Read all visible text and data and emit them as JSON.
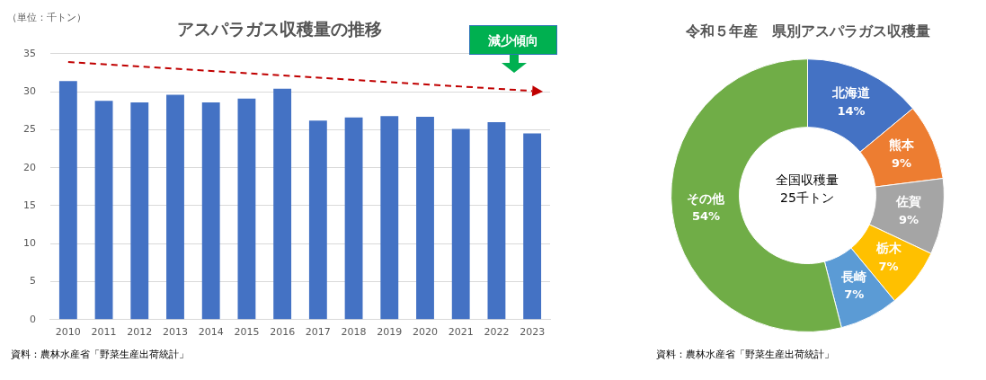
{
  "chart_data": [
    {
      "type": "bar",
      "title": "アスパラガス収穫量の推移",
      "ylabel": "（単位：千トン）",
      "categories": [
        "2010",
        "2011",
        "2012",
        "2013",
        "2014",
        "2015",
        "2016",
        "2017",
        "2018",
        "2019",
        "2020",
        "2021",
        "2022",
        "2023"
      ],
      "series": [
        {
          "color": "#4472c4",
          "values": [
            31.4,
            28.8,
            28.6,
            29.6,
            28.6,
            29.1,
            30.4,
            26.2,
            26.6,
            26.8,
            26.7,
            25.1,
            26.0,
            24.5
          ]
        },
        {
          "type": "line",
          "color": "#c00000",
          "line_style": "dashed",
          "values": [
            33.9,
            null,
            null,
            null,
            null,
            null,
            null,
            null,
            null,
            null,
            null,
            null,
            null,
            30.1
          ]
        }
      ],
      "ylim": [
        0,
        35
      ],
      "yticks": [
        0,
        5,
        10,
        15,
        20,
        25,
        30,
        35
      ],
      "grid": "y",
      "legend": false,
      "annotations": [
        "減少傾向",
        "資料：農林水産省「野菜生産出荷統計」"
      ]
    },
    {
      "type": "donut",
      "title": "令和５年産　県別アスパラガス収穫量",
      "categories": [
        "北海道",
        "熊本",
        "佐賀",
        "栃木",
        "長崎",
        "その他"
      ],
      "values": [
        14,
        9,
        9,
        7,
        7,
        54
      ],
      "colors": [
        "#4472c4",
        "#ed7d31",
        "#a5a5a5",
        "#ffc000",
        "#5b9bd5",
        "#70ad47"
      ],
      "value_labels": [
        "14%",
        "9%",
        "9%",
        "7%",
        "7%",
        "54%"
      ],
      "legend": false,
      "annotations": [
        "全国収穫量\n25千トン",
        "資料：農林水産省「野菜生産出荷統計」"
      ]
    }
  ]
}
